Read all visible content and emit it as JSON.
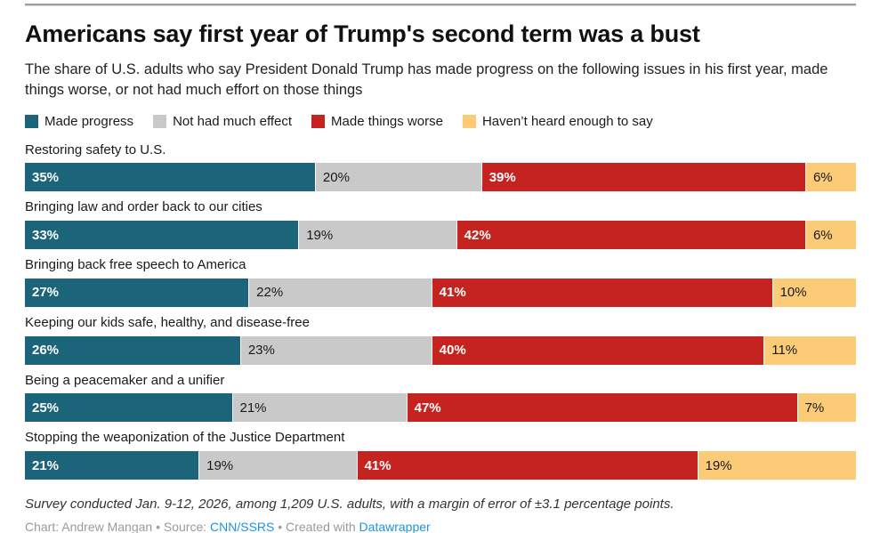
{
  "header": {
    "title": "Americans say first year of Trump's second term was a bust",
    "subtitle": "The share of U.S. adults who say President Donald Trump has made progress on the following issues in his first year, made things worse, or not had much effort on those things"
  },
  "colors": {
    "made_progress": "#1c647a",
    "not_much_effect": "#c9c9c9",
    "made_worse": "#c5231f",
    "havent_heard": "#fbcb78",
    "link_blue": "#1e95dd",
    "label_light": "#ffffff",
    "label_dark": "#1a1a1a"
  },
  "legend": [
    {
      "label": "Made progress",
      "color": "#1c647a"
    },
    {
      "label": "Not had much effect",
      "color": "#c9c9c9"
    },
    {
      "label": "Made things worse",
      "color": "#c5231f"
    },
    {
      "label": "Haven’t heard enough to say",
      "color": "#fbcb78"
    }
  ],
  "chart_data": {
    "type": "bar",
    "variant": "horizontal-stacked-100",
    "unit": "%",
    "xlim": [
      0,
      100
    ],
    "grid": false,
    "legend_position": "top",
    "value_label_format": "{v}%",
    "categories": [
      "Restoring safety to U.S.",
      "Bringing law and order back to our cities",
      "Bringing back free speech to America",
      "Keeping our kids safe, healthy, and disease-free",
      "Being a peacemaker and a unifier",
      "Stopping the weaponization of the Justice Department"
    ],
    "series": [
      {
        "name": "Made progress",
        "color": "#1c647a",
        "text_color": "#ffffff",
        "text_weight": "700",
        "values": [
          35,
          33,
          27,
          26,
          25,
          21
        ]
      },
      {
        "name": "Not had much effect",
        "color": "#c9c9c9",
        "text_color": "#1a1a1a",
        "text_weight": "400",
        "values": [
          20,
          19,
          22,
          23,
          21,
          19
        ]
      },
      {
        "name": "Made things worse",
        "color": "#c5231f",
        "text_color": "#ffffff",
        "text_weight": "700",
        "values": [
          39,
          42,
          41,
          40,
          47,
          41
        ]
      },
      {
        "name": "Haven’t heard enough to say",
        "color": "#fbcb78",
        "text_color": "#1a1a1a",
        "text_weight": "400",
        "values": [
          6,
          6,
          10,
          11,
          7,
          19
        ]
      }
    ]
  },
  "footer": {
    "note": "Survey conducted Jan. 9-12, 2026, among 1,209 U.S. adults, with a margin of error of ±3.1 percentage points.",
    "credit_prefix": "Chart: Andrew Mangan • Source: ",
    "source_link": "CNN/SSRS",
    "credit_middle": " • Created with ",
    "tool_link": "Datawrapper"
  }
}
